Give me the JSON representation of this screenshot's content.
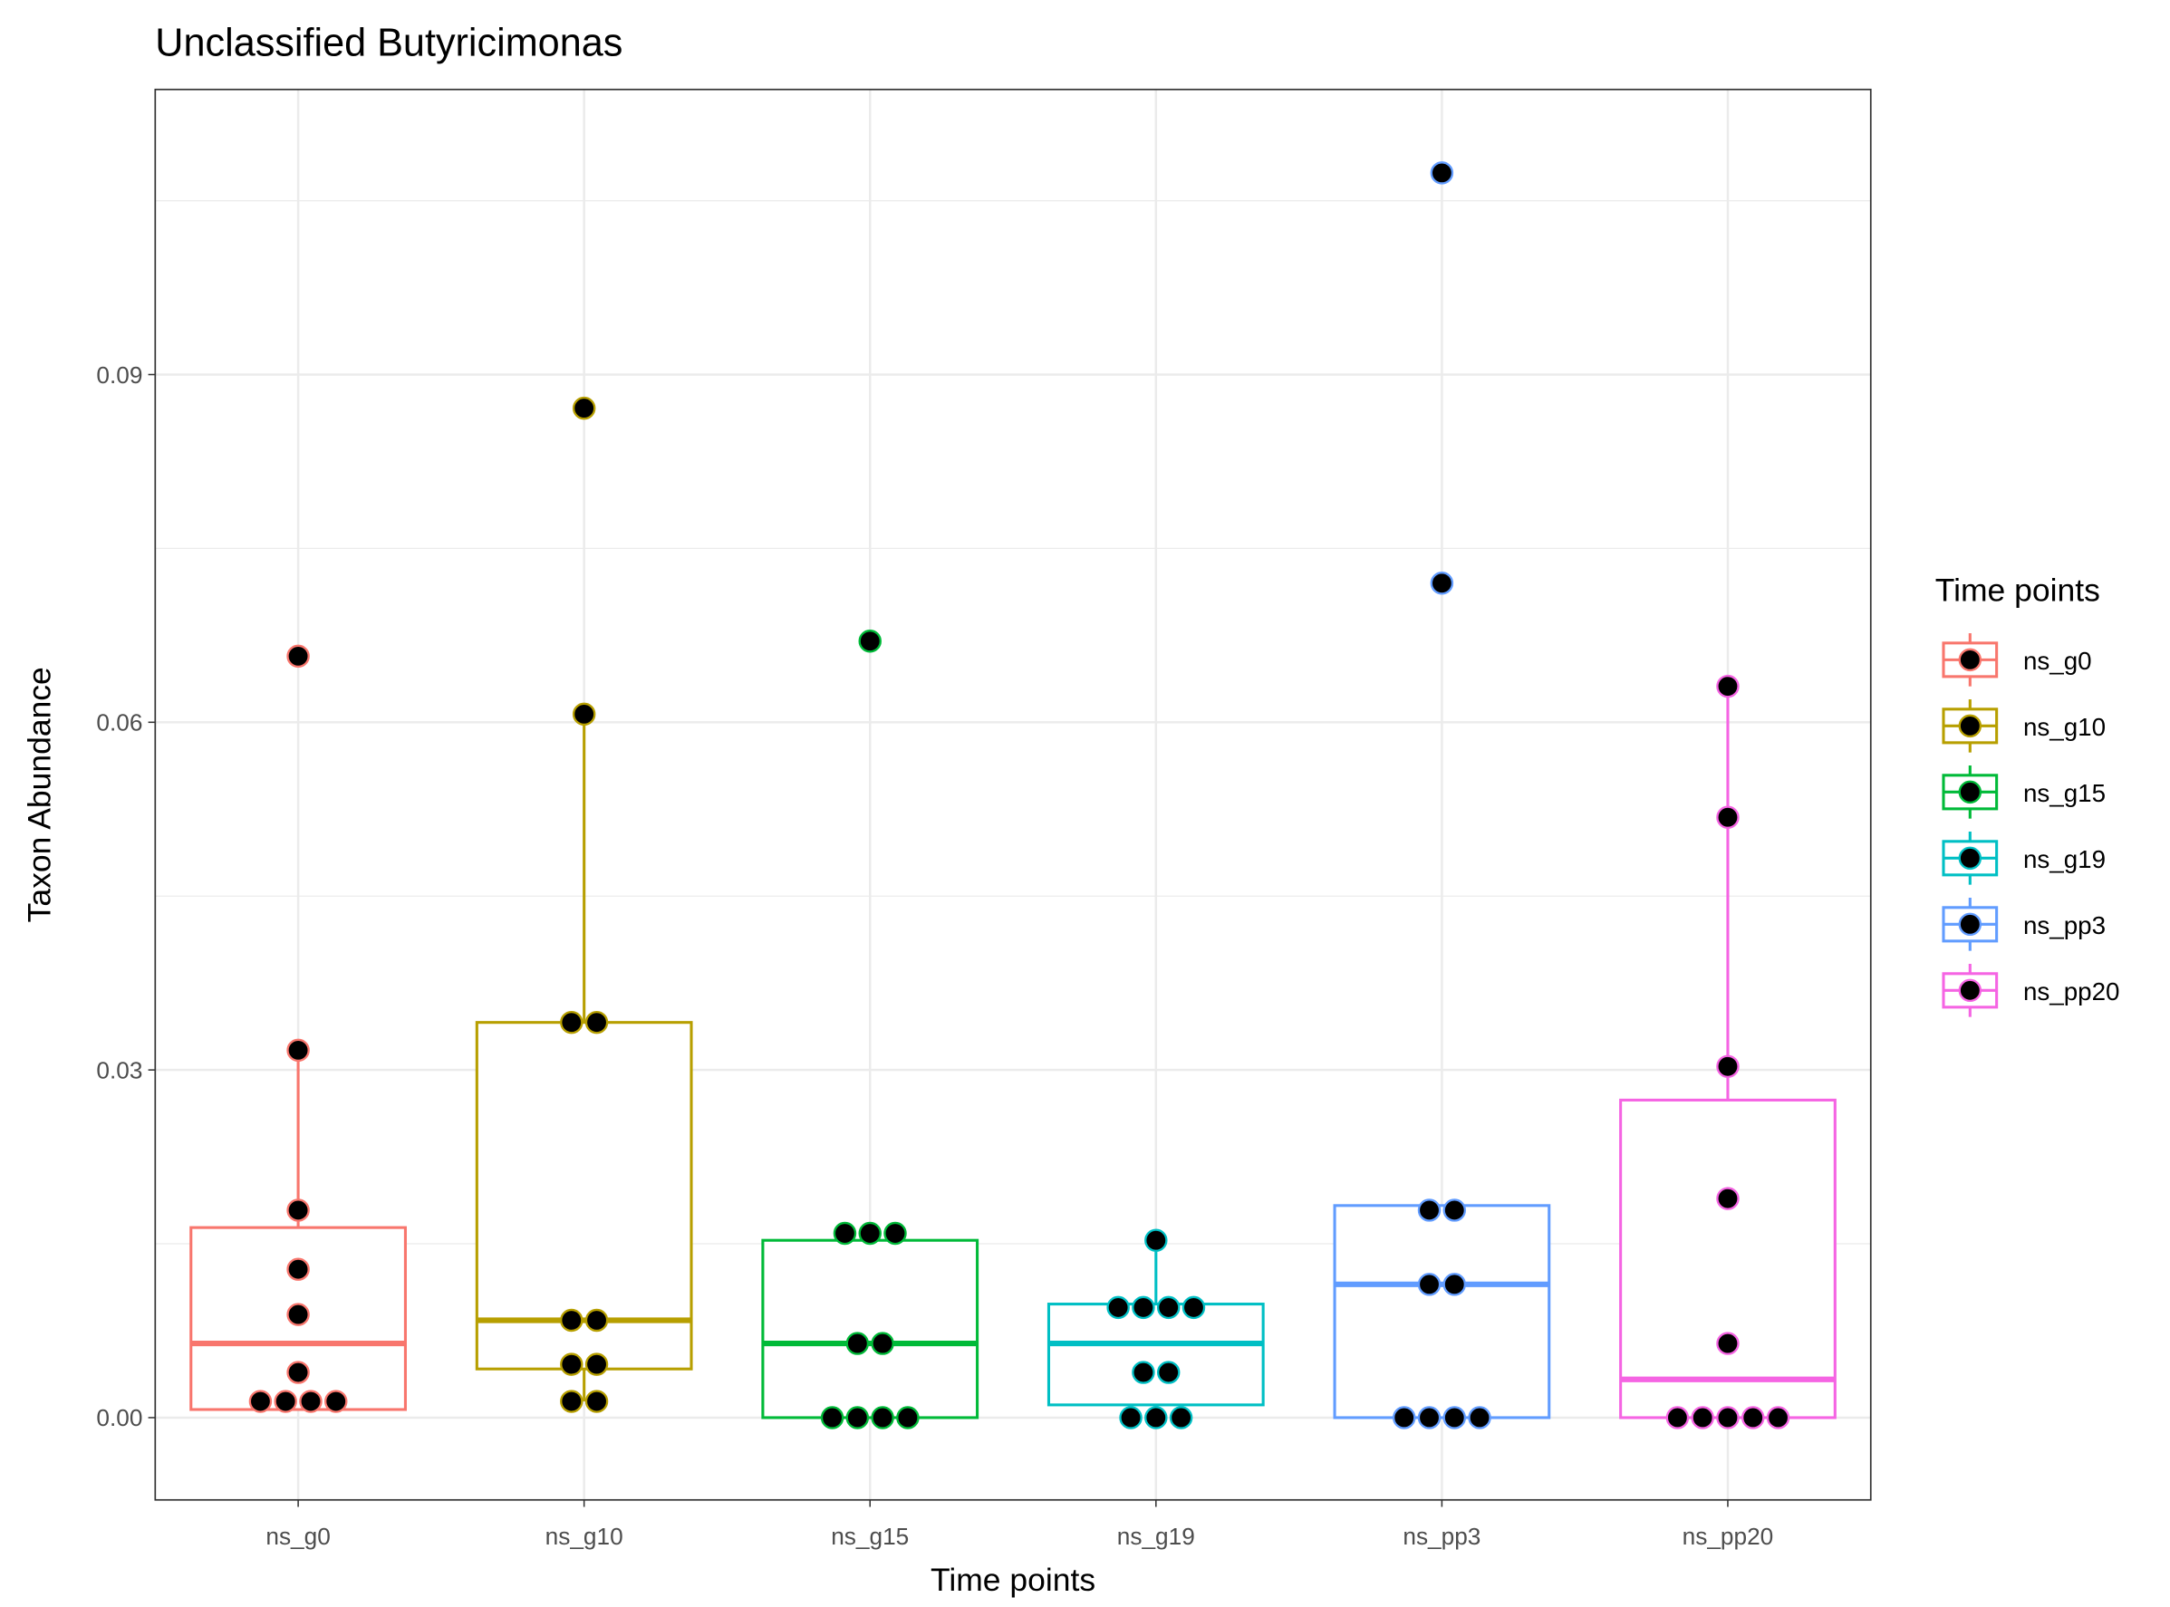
{
  "chart_data": {
    "type": "box",
    "title": "Unclassified  Butyricimonas",
    "x_label": "Time points",
    "y_label": "Taxon Abundance",
    "legend_title": "Time points",
    "categories": [
      "ns_g0",
      "ns_g10",
      "ns_g15",
      "ns_g19",
      "ns_pp3",
      "ns_pp20"
    ],
    "ylim": [
      -0.0071,
      0.1146
    ],
    "yticks": [
      {
        "value": 0,
        "label": "0.00"
      },
      0.03,
      0.06,
      0.09
    ],
    "grid": true,
    "legend": "right",
    "point_color": "#000000",
    "series": [
      {
        "name": "ns_g0",
        "color": "#F8766D",
        "box": {
          "whisker_low": 0.0007,
          "q1": 0.0007,
          "median": 0.0064,
          "q3": 0.0164,
          "whisker_high": 0.0317
        },
        "points": [
          0.0657,
          0.0317,
          0.0179,
          0.0128,
          0.0089,
          0.0039,
          0.0014,
          0.0014,
          0.0014,
          0.0014
        ]
      },
      {
        "name": "ns_g10",
        "color": "#B79F00",
        "box": {
          "whisker_low": 0.0014,
          "q1": 0.0042,
          "median": 0.0084,
          "q3": 0.0341,
          "whisker_high": 0.0607
        },
        "points": [
          0.0871,
          0.0607,
          0.0341,
          0.0341,
          0.0084,
          0.0084,
          0.0046,
          0.0046,
          0.0014,
          0.0014
        ]
      },
      {
        "name": "ns_g15",
        "color": "#00BA38",
        "box": {
          "whisker_low": 0,
          "q1": 0,
          "median": 0.0064,
          "q3": 0.0153,
          "whisker_high": 0.0159
        },
        "points": [
          0.067,
          0.0159,
          0.0159,
          0.0159,
          0.0064,
          0.0064,
          0,
          0,
          0,
          0
        ]
      },
      {
        "name": "ns_g19",
        "color": "#00BFC4",
        "box": {
          "whisker_low": 0,
          "q1": 0.0011,
          "median": 0.0064,
          "q3": 0.0098,
          "whisker_high": 0.0153
        },
        "points": [
          0.0153,
          0.0095,
          0.0095,
          0.0095,
          0.0095,
          0.0039,
          0.0039,
          0,
          0,
          0
        ]
      },
      {
        "name": "ns_pp3",
        "color": "#619CFF",
        "box": {
          "whisker_low": 0,
          "q1": 0,
          "median": 0.0115,
          "q3": 0.0183,
          "whisker_high": 0.0183
        },
        "points": [
          0.1074,
          0.072,
          0.0179,
          0.0179,
          0.0115,
          0.0115,
          0,
          0,
          0,
          0
        ]
      },
      {
        "name": "ns_pp20",
        "color": "#F564E3",
        "box": {
          "whisker_low": 0,
          "q1": 0,
          "median": 0.0033,
          "q3": 0.0274,
          "whisker_high": 0.0631
        },
        "points": [
          0.0631,
          0.0518,
          0.0303,
          0.0189,
          0.0064,
          0,
          0,
          0,
          0,
          0
        ]
      }
    ]
  }
}
